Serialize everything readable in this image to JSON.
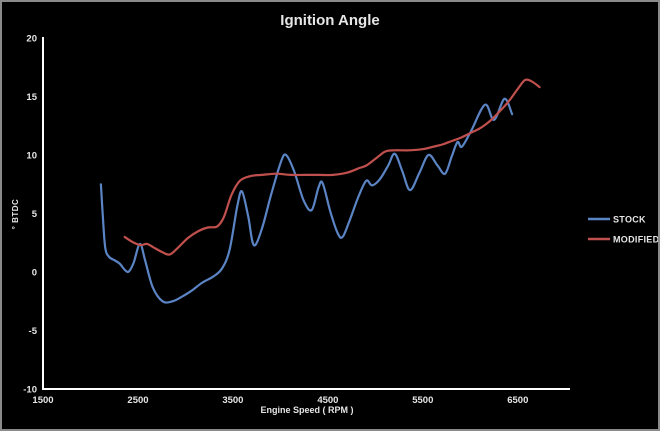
{
  "window": {
    "border_color": "#8a8a8a",
    "background": "#000000"
  },
  "chart_data": {
    "type": "line",
    "title": "Ignition Angle",
    "xlabel": "Engine Speed ( RPM )",
    "ylabel": "° BTDC",
    "xlim": [
      1500,
      7050
    ],
    "ylim": [
      -10,
      20
    ],
    "x_ticks": [
      1500,
      2500,
      3500,
      4500,
      5500,
      6500
    ],
    "y_ticks": [
      20,
      15,
      10,
      5,
      0,
      -5,
      -10
    ],
    "grid": false,
    "legend_position": "right",
    "colors": {
      "axis": "#ffffff",
      "text": "#e6e6e6",
      "stock": "#5b84c4",
      "modified": "#c0504d"
    },
    "series": [
      {
        "name": "STOCK",
        "color": "#5b84c4",
        "points": [
          [
            2110,
            7.5
          ],
          [
            2130,
            4.8
          ],
          [
            2155,
            2.1
          ],
          [
            2195,
            1.3
          ],
          [
            2255,
            1.0
          ],
          [
            2310,
            0.7
          ],
          [
            2365,
            0.15
          ],
          [
            2405,
            0.05
          ],
          [
            2455,
            0.8
          ],
          [
            2520,
            2.4
          ],
          [
            2575,
            1.0
          ],
          [
            2655,
            -1.3
          ],
          [
            2760,
            -2.5
          ],
          [
            2865,
            -2.5
          ],
          [
            2965,
            -2.1
          ],
          [
            3065,
            -1.6
          ],
          [
            3180,
            -0.9
          ],
          [
            3290,
            -0.4
          ],
          [
            3385,
            0.3
          ],
          [
            3465,
            1.9
          ],
          [
            3545,
            5.6
          ],
          [
            3595,
            6.9
          ],
          [
            3660,
            4.8
          ],
          [
            3720,
            2.3
          ],
          [
            3805,
            3.7
          ],
          [
            3905,
            6.7
          ],
          [
            4005,
            9.4
          ],
          [
            4060,
            10.0
          ],
          [
            4145,
            8.6
          ],
          [
            4245,
            6.1
          ],
          [
            4330,
            5.3
          ],
          [
            4400,
            7.2
          ],
          [
            4445,
            7.6
          ],
          [
            4525,
            5.2
          ],
          [
            4605,
            3.3
          ],
          [
            4655,
            3.0
          ],
          [
            4725,
            4.3
          ],
          [
            4825,
            6.5
          ],
          [
            4905,
            7.8
          ],
          [
            4965,
            7.4
          ],
          [
            5045,
            7.9
          ],
          [
            5135,
            9.1
          ],
          [
            5205,
            10.1
          ],
          [
            5285,
            8.6
          ],
          [
            5365,
            7.0
          ],
          [
            5465,
            8.5
          ],
          [
            5560,
            10.0
          ],
          [
            5655,
            9.1
          ],
          [
            5735,
            8.4
          ],
          [
            5805,
            9.9
          ],
          [
            5865,
            11.1
          ],
          [
            5910,
            10.7
          ],
          [
            6005,
            12.0
          ],
          [
            6155,
            14.3
          ],
          [
            6250,
            13.0
          ],
          [
            6360,
            14.8
          ],
          [
            6440,
            13.5
          ]
        ]
      },
      {
        "name": "MODIFIED",
        "color": "#c0504d",
        "points": [
          [
            2360,
            3.0
          ],
          [
            2435,
            2.6
          ],
          [
            2525,
            2.3
          ],
          [
            2595,
            2.4
          ],
          [
            2665,
            2.1
          ],
          [
            2755,
            1.7
          ],
          [
            2835,
            1.5
          ],
          [
            2925,
            2.1
          ],
          [
            3025,
            2.9
          ],
          [
            3135,
            3.5
          ],
          [
            3235,
            3.8
          ],
          [
            3335,
            3.9
          ],
          [
            3405,
            4.7
          ],
          [
            3485,
            6.6
          ],
          [
            3575,
            7.8
          ],
          [
            3685,
            8.2
          ],
          [
            3805,
            8.3
          ],
          [
            3955,
            8.4
          ],
          [
            4105,
            8.3
          ],
          [
            4255,
            8.3
          ],
          [
            4405,
            8.3
          ],
          [
            4555,
            8.3
          ],
          [
            4705,
            8.5
          ],
          [
            4835,
            8.9
          ],
          [
            4905,
            9.1
          ],
          [
            5005,
            9.7
          ],
          [
            5105,
            10.3
          ],
          [
            5205,
            10.4
          ],
          [
            5355,
            10.4
          ],
          [
            5505,
            10.5
          ],
          [
            5605,
            10.7
          ],
          [
            5705,
            10.9
          ],
          [
            5805,
            11.2
          ],
          [
            5905,
            11.5
          ],
          [
            6005,
            11.9
          ],
          [
            6105,
            12.3
          ],
          [
            6205,
            12.9
          ],
          [
            6305,
            13.7
          ],
          [
            6405,
            14.6
          ],
          [
            6505,
            15.7
          ],
          [
            6575,
            16.4
          ],
          [
            6645,
            16.3
          ],
          [
            6730,
            15.8
          ]
        ]
      }
    ]
  }
}
